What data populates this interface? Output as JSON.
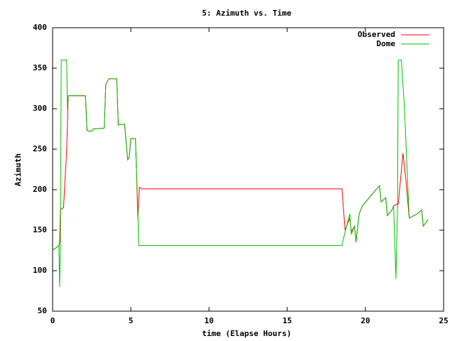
{
  "chart_data": {
    "type": "line",
    "title": "5: Azimuth vs. Time",
    "x_label": "time (Elapse Hours)",
    "y_label": "Azimuth",
    "xlim": [
      0,
      25
    ],
    "xticks": [
      0,
      5,
      10,
      15,
      20,
      25
    ],
    "ylim": [
      50,
      400
    ],
    "yticks": [
      50,
      100,
      150,
      200,
      250,
      300,
      350,
      400
    ],
    "legend": "upper right",
    "series": [
      {
        "name": "Observed",
        "color": "#ff0000",
        "x": [
          0,
          0.4,
          0.45,
          0.5,
          0.7,
          0.9,
          1.0,
          2.1,
          2.2,
          2.5,
          2.6,
          3.3,
          3.4,
          3.6,
          4.1,
          4.2,
          4.6,
          4.8,
          4.9,
          5.0,
          5.3,
          5.45,
          5.55,
          5.7,
          18.5,
          18.7,
          18.9,
          19.0,
          19.1,
          19.3,
          19.4,
          19.6,
          19.8,
          20.9,
          21.0,
          21.3,
          21.4,
          21.7,
          21.8,
          22.0,
          22.1,
          22.4,
          22.6,
          22.8,
          23.3,
          23.6,
          23.7,
          24.0
        ],
        "values": [
          125,
          131,
          135,
          175,
          178,
          250,
          316,
          316,
          273,
          272,
          275,
          276,
          330,
          337,
          337,
          280,
          281,
          237,
          240,
          263,
          263,
          165,
          203,
          201,
          201,
          150,
          160,
          165,
          148,
          155,
          137,
          170,
          180,
          205,
          185,
          190,
          168,
          175,
          180,
          182,
          182,
          245,
          210,
          165,
          170,
          175,
          155,
          163
        ]
      },
      {
        "name": "Dome",
        "color": "#00c000",
        "x": [
          0,
          0.4,
          0.45,
          0.5,
          0.55,
          0.9,
          0.95,
          1.0,
          2.1,
          2.2,
          2.5,
          2.6,
          3.3,
          3.4,
          3.6,
          4.1,
          4.2,
          4.6,
          4.8,
          4.9,
          5.0,
          5.3,
          5.35,
          5.45,
          5.5,
          18.5,
          18.6,
          18.8,
          19.0,
          19.1,
          19.3,
          19.4,
          19.6,
          19.8,
          20.9,
          21.0,
          21.3,
          21.4,
          21.7,
          21.8,
          21.95,
          22.05,
          22.1,
          22.3,
          22.5,
          22.8,
          23.3,
          23.6,
          23.7,
          24.0
        ],
        "values": [
          125,
          131,
          80,
          135,
          360,
          360,
          300,
          316,
          316,
          273,
          272,
          275,
          276,
          330,
          337,
          337,
          280,
          281,
          237,
          240,
          263,
          263,
          232,
          175,
          131,
          131,
          140,
          155,
          170,
          145,
          155,
          135,
          170,
          180,
          205,
          185,
          190,
          168,
          175,
          180,
          90,
          175,
          360,
          360,
          300,
          165,
          170,
          175,
          155,
          163
        ]
      }
    ]
  }
}
